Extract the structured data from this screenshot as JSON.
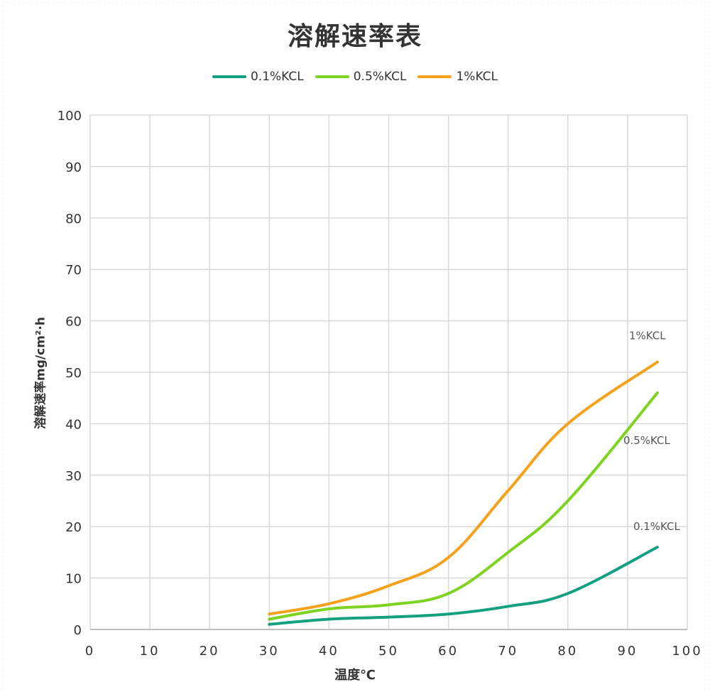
{
  "chart_data": {
    "type": "line",
    "title": "溶解速率表",
    "xlabel": "温度℃",
    "ylabel": "溶解速率mg/cm²·h",
    "xlim": [
      0,
      100
    ],
    "ylim": [
      0,
      100
    ],
    "xticks": [
      "0",
      "10",
      "20",
      "30",
      "40",
      "50",
      "60",
      "70",
      "80",
      "90",
      "100"
    ],
    "yticks": [
      "0",
      "10",
      "20",
      "30",
      "40",
      "50",
      "60",
      "70",
      "80",
      "90",
      "100"
    ],
    "grid": true,
    "legend_position": "top",
    "x": [
      30,
      40,
      50,
      60,
      70,
      80,
      95
    ],
    "series": [
      {
        "name": "0.1%KCL",
        "color": "#12a080",
        "values": [
          1,
          2,
          2.4,
          3,
          4.5,
          7,
          16
        ],
        "label": "0.1%KCL"
      },
      {
        "name": "0.5%KCL",
        "color": "#7ed321",
        "values": [
          2,
          4,
          4.8,
          7,
          15,
          25,
          46
        ],
        "label": "0.5%KCL"
      },
      {
        "name": "1%KCL",
        "color": "#f5a11c",
        "values": [
          3,
          5,
          8.5,
          14,
          27,
          40,
          52
        ],
        "label": "1%KCL"
      }
    ]
  }
}
